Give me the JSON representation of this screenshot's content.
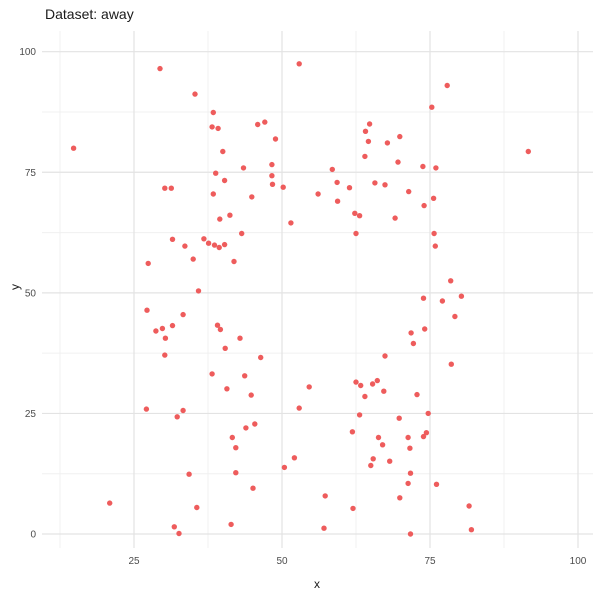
{
  "title": "Dataset: away",
  "axes": {
    "x_label": "x",
    "y_label": "y"
  },
  "chart_data": {
    "type": "scatter",
    "title": "Dataset: away",
    "xlabel": "x",
    "ylabel": "y",
    "xlim": [
      9.5,
      102.5
    ],
    "ylim": [
      -2.9,
      104.3
    ],
    "x_ticks": [
      25,
      50,
      75,
      100
    ],
    "y_ticks": [
      0,
      25,
      50,
      75,
      100
    ],
    "grid": true,
    "legend": false,
    "style": {
      "point_color": "#EE5C5C",
      "point_radius": 2.7,
      "grid_major_color": "#E3E3E3",
      "grid_minor_color": "#F0F0F0",
      "tick_label_color": "#4D4D4D",
      "background": "#FFFFFF"
    },
    "points": [
      [
        29.4,
        96.5
      ],
      [
        35.3,
        91.2
      ],
      [
        38.4,
        87.4
      ],
      [
        38.2,
        84.4
      ],
      [
        39.2,
        84.1
      ],
      [
        14.8,
        80.0
      ],
      [
        40.0,
        79.3
      ],
      [
        38.8,
        74.8
      ],
      [
        40.3,
        73.3
      ],
      [
        30.2,
        71.7
      ],
      [
        31.3,
        71.7
      ],
      [
        38.4,
        70.5
      ],
      [
        39.5,
        65.3
      ],
      [
        52.9,
        97.5
      ],
      [
        45.9,
        84.9
      ],
      [
        47.1,
        85.4
      ],
      [
        48.9,
        81.9
      ],
      [
        48.3,
        76.6
      ],
      [
        43.5,
        75.9
      ],
      [
        48.3,
        74.3
      ],
      [
        48.4,
        72.5
      ],
      [
        50.2,
        71.9
      ],
      [
        44.9,
        69.9
      ],
      [
        41.2,
        66.1
      ],
      [
        51.5,
        64.5
      ],
      [
        58.5,
        75.6
      ],
      [
        59.3,
        72.9
      ],
      [
        56.1,
        70.5
      ],
      [
        59.4,
        69.0
      ],
      [
        61.4,
        71.8
      ],
      [
        62.3,
        66.5
      ],
      [
        63.1,
        66.0
      ],
      [
        64.1,
        83.5
      ],
      [
        64.8,
        85.0
      ],
      [
        64.6,
        81.4
      ],
      [
        64.0,
        78.3
      ],
      [
        67.8,
        81.1
      ],
      [
        69.9,
        82.4
      ],
      [
        69.6,
        77.1
      ],
      [
        65.7,
        72.8
      ],
      [
        67.4,
        72.4
      ],
      [
        71.4,
        71.0
      ],
      [
        69.1,
        65.5
      ],
      [
        77.9,
        93.0
      ],
      [
        75.3,
        88.5
      ],
      [
        91.6,
        79.3
      ],
      [
        73.8,
        76.2
      ],
      [
        76.0,
        75.9
      ],
      [
        75.6,
        69.6
      ],
      [
        74.0,
        68.1
      ],
      [
        31.5,
        61.1
      ],
      [
        33.6,
        59.7
      ],
      [
        36.8,
        61.2
      ],
      [
        37.6,
        60.3
      ],
      [
        38.6,
        59.9
      ],
      [
        39.4,
        59.4
      ],
      [
        40.3,
        60.0
      ],
      [
        27.4,
        56.1
      ],
      [
        35.0,
        57.0
      ],
      [
        35.9,
        50.4
      ],
      [
        27.2,
        46.4
      ],
      [
        33.3,
        45.5
      ],
      [
        28.7,
        42.1
      ],
      [
        29.8,
        42.6
      ],
      [
        31.5,
        43.2
      ],
      [
        30.3,
        40.6
      ],
      [
        39.1,
        43.3
      ],
      [
        39.6,
        42.4
      ],
      [
        40.4,
        38.5
      ],
      [
        30.2,
        37.1
      ],
      [
        38.2,
        33.2
      ],
      [
        43.2,
        62.3
      ],
      [
        62.5,
        62.3
      ],
      [
        41.9,
        56.5
      ],
      [
        42.9,
        40.6
      ],
      [
        46.4,
        36.6
      ],
      [
        43.7,
        32.8
      ],
      [
        54.6,
        30.5
      ],
      [
        71.8,
        41.7
      ],
      [
        72.2,
        39.5
      ],
      [
        67.4,
        36.9
      ],
      [
        75.7,
        62.3
      ],
      [
        75.9,
        59.7
      ],
      [
        78.5,
        52.5
      ],
      [
        80.3,
        49.3
      ],
      [
        73.9,
        48.9
      ],
      [
        77.1,
        48.3
      ],
      [
        79.2,
        45.1
      ],
      [
        74.1,
        42.5
      ],
      [
        78.6,
        35.2
      ],
      [
        40.7,
        30.1
      ],
      [
        27.1,
        25.9
      ],
      [
        33.3,
        25.6
      ],
      [
        32.3,
        24.3
      ],
      [
        34.3,
        12.4
      ],
      [
        20.9,
        6.4
      ],
      [
        35.6,
        5.5
      ],
      [
        31.8,
        1.5
      ],
      [
        32.6,
        0.1
      ],
      [
        44.8,
        28.8
      ],
      [
        52.9,
        26.1
      ],
      [
        62.5,
        31.5
      ],
      [
        63.3,
        30.8
      ],
      [
        64.0,
        28.5
      ],
      [
        65.3,
        31.1
      ],
      [
        66.1,
        31.8
      ],
      [
        67.2,
        29.6
      ],
      [
        72.8,
        28.9
      ],
      [
        63.1,
        24.7
      ],
      [
        69.8,
        24.0
      ],
      [
        43.9,
        22.0
      ],
      [
        45.4,
        22.8
      ],
      [
        41.6,
        20.0
      ],
      [
        61.9,
        21.2
      ],
      [
        42.2,
        17.9
      ],
      [
        66.3,
        20.0
      ],
      [
        67.0,
        18.5
      ],
      [
        71.3,
        20.0
      ],
      [
        71.6,
        17.8
      ],
      [
        52.1,
        15.8
      ],
      [
        50.4,
        13.8
      ],
      [
        65.4,
        15.6
      ],
      [
        65.0,
        14.2
      ],
      [
        68.2,
        15.1
      ],
      [
        42.2,
        12.7
      ],
      [
        71.7,
        12.6
      ],
      [
        71.3,
        10.5
      ],
      [
        45.1,
        9.5
      ],
      [
        57.3,
        7.9
      ],
      [
        69.9,
        7.5
      ],
      [
        62.0,
        5.3
      ],
      [
        41.4,
        2.0
      ],
      [
        57.1,
        1.2
      ],
      [
        71.7,
        0.0
      ],
      [
        74.7,
        25.0
      ],
      [
        73.9,
        20.2
      ],
      [
        74.4,
        21.0
      ],
      [
        76.1,
        10.3
      ],
      [
        81.6,
        5.8
      ],
      [
        82.0,
        0.9
      ]
    ]
  }
}
